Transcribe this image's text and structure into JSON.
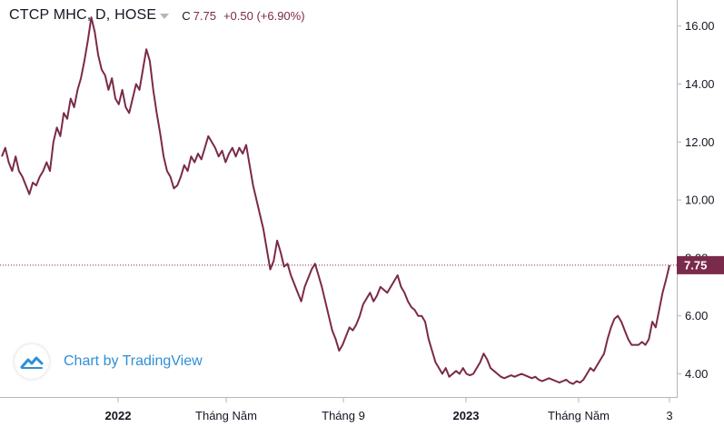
{
  "legend": {
    "symbol": "CTCP MHC, D, HOSE",
    "close_label": "C",
    "close_value": "7.75",
    "change": "+0.50 (+6.90%)"
  },
  "watermark": {
    "text": "Chart by TradingView",
    "icon": "tradingview-cloud-icon"
  },
  "colors": {
    "line": "#7a2a4a",
    "price_tag": "#7a2a4a",
    "axis": "#b2b5be",
    "text": "#131722",
    "watermark": "#2f8fd6"
  },
  "chart_data": {
    "type": "line",
    "title": "CTCP MHC, D, HOSE",
    "ylim": [
      3.2,
      16.9
    ],
    "y_ticks": [
      "4.00",
      "6.00",
      "8.00",
      "10.00",
      "12.00",
      "14.00",
      "16.00"
    ],
    "x_ticks": [
      {
        "label": "2022",
        "bold": true
      },
      {
        "label": "Tháng Năm",
        "bold": false
      },
      {
        "label": "Tháng 9",
        "bold": false
      },
      {
        "label": "2023",
        "bold": true
      },
      {
        "label": "Tháng Năm",
        "bold": false
      },
      {
        "label": "3",
        "bold": false
      }
    ],
    "last_price": 7.75,
    "last_price_label": "7.75",
    "grid": false,
    "series": [
      {
        "values": [
          11.5,
          11.8,
          11.3,
          11.0,
          11.5,
          11.0,
          10.8,
          10.5,
          10.2,
          10.6,
          10.5,
          10.8,
          11.0,
          11.3,
          11.0,
          12.0,
          12.5,
          12.2,
          13.0,
          12.8,
          13.5,
          13.2,
          13.8,
          14.2,
          14.8,
          15.5,
          16.3,
          15.8,
          15.0,
          14.5,
          14.3,
          13.8,
          14.2,
          13.5,
          13.3,
          13.8,
          13.2,
          13.0,
          13.5,
          14.0,
          13.8,
          14.5,
          15.2,
          14.8,
          13.8,
          13.0,
          12.3,
          11.5,
          11.0,
          10.8,
          10.4,
          10.5,
          10.8,
          11.2,
          11.0,
          11.5,
          11.3,
          11.6,
          11.4,
          11.8,
          12.2,
          12.0,
          11.8,
          11.5,
          11.7,
          11.3,
          11.6,
          11.8,
          11.5,
          11.8,
          11.6,
          11.9,
          11.2,
          10.5,
          10.0,
          9.5,
          9.0,
          8.3,
          7.6,
          7.9,
          8.6,
          8.2,
          7.7,
          7.8,
          7.4,
          7.1,
          6.8,
          6.5,
          7.0,
          7.3,
          7.6,
          7.8,
          7.4,
          7.0,
          6.5,
          6.0,
          5.5,
          5.2,
          4.8,
          5.0,
          5.3,
          5.6,
          5.5,
          5.7,
          6.0,
          6.4,
          6.6,
          6.8,
          6.5,
          6.7,
          7.0,
          6.9,
          6.8,
          7.0,
          7.2,
          7.4,
          7.0,
          6.8,
          6.5,
          6.3,
          6.2,
          6.0,
          6.0,
          5.8,
          5.2,
          4.8,
          4.4,
          4.2,
          4.0,
          4.2,
          3.9,
          4.0,
          4.1,
          4.0,
          4.2,
          4.0,
          3.95,
          4.0,
          4.2,
          4.4,
          4.7,
          4.5,
          4.2,
          4.1,
          4.0,
          3.9,
          3.85,
          3.9,
          3.95,
          3.9,
          3.95,
          4.0,
          3.95,
          3.9,
          3.85,
          3.9,
          3.8,
          3.75,
          3.8,
          3.85,
          3.8,
          3.75,
          3.7,
          3.75,
          3.8,
          3.7,
          3.65,
          3.75,
          3.7,
          3.8,
          4.0,
          4.2,
          4.1,
          4.3,
          4.5,
          4.7,
          5.2,
          5.6,
          5.9,
          6.0,
          5.8,
          5.5,
          5.2,
          5.0,
          5.0,
          5.0,
          5.1,
          5.0,
          5.2,
          5.8,
          5.6,
          6.2,
          6.8,
          7.25,
          7.75
        ]
      }
    ]
  }
}
